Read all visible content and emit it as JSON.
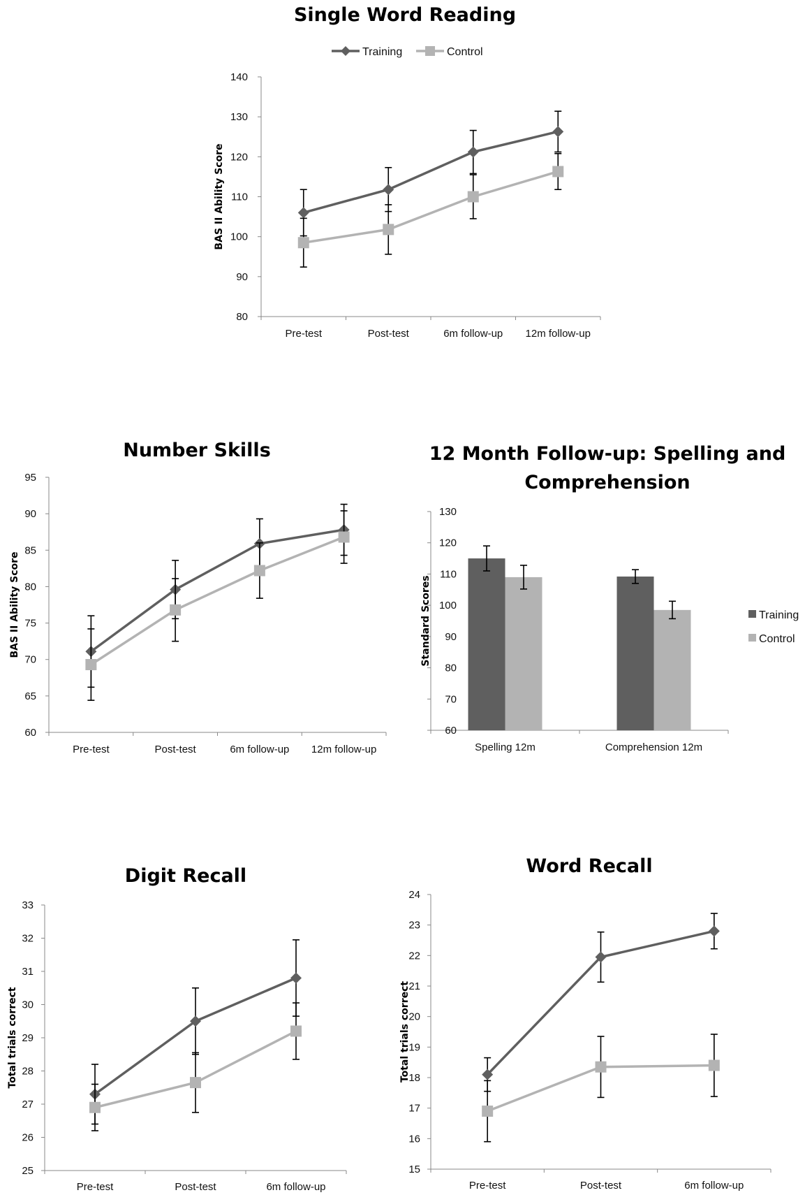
{
  "colors": {
    "training": "#5f5f5f",
    "control": "#b3b3b3"
  },
  "chart_data": [
    {
      "type": "line",
      "title": "Single Word Reading",
      "ylabel": "BAS II Ability Score",
      "ylim": [
        80,
        140
      ],
      "yticks": [
        80,
        90,
        100,
        110,
        120,
        130,
        140
      ],
      "categories": [
        "Pre-test",
        "Post-test",
        "6m follow-up",
        "12m follow-up"
      ],
      "legend": "top",
      "series": [
        {
          "name": "Training",
          "marker": "diamond",
          "values": [
            106,
            111.8,
            121.2,
            126.3
          ],
          "error": [
            5.8,
            5.5,
            5.4,
            5.1
          ]
        },
        {
          "name": "Control",
          "marker": "square",
          "values": [
            98.5,
            101.8,
            110,
            116.3
          ],
          "error": [
            6.1,
            6.2,
            5.5,
            4.5
          ]
        }
      ]
    },
    {
      "type": "line",
      "title": "Number Skills",
      "ylabel": "BAS II Ability Score",
      "ylim": [
        60,
        95
      ],
      "yticks": [
        60,
        65,
        70,
        75,
        80,
        85,
        90,
        95
      ],
      "categories": [
        "Pre-test",
        "Post-test",
        "6m follow-up",
        "12m follow-up"
      ],
      "series": [
        {
          "name": "Training",
          "marker": "diamond",
          "values": [
            71.1,
            79.6,
            85.9,
            87.8
          ],
          "error": [
            4.9,
            4.0,
            3.4,
            3.5
          ]
        },
        {
          "name": "Control",
          "marker": "square",
          "values": [
            69.3,
            76.8,
            82.2,
            86.8
          ],
          "error": [
            4.9,
            4.3,
            3.8,
            3.6
          ]
        }
      ]
    },
    {
      "type": "bar",
      "title": "12 Month Follow-up: Spelling and Comprehension",
      "title_lines": [
        "12 Month Follow-up: Spelling and",
        "Comprehension"
      ],
      "ylabel": "Standard Scores",
      "ylim": [
        60,
        130
      ],
      "yticks": [
        60,
        70,
        80,
        90,
        100,
        110,
        120,
        130
      ],
      "categories": [
        "Spelling 12m",
        "Comprehension 12m"
      ],
      "legend": "right",
      "series": [
        {
          "name": "Training",
          "values": [
            115,
            109.2
          ],
          "error": [
            4.0,
            2.2
          ]
        },
        {
          "name": "Control",
          "values": [
            109,
            98.5
          ],
          "error": [
            3.8,
            2.8
          ]
        }
      ]
    },
    {
      "type": "line",
      "title": "Digit Recall",
      "ylabel": "Total trials correct",
      "ylim": [
        25,
        33
      ],
      "yticks": [
        25,
        26,
        27,
        28,
        29,
        30,
        31,
        32,
        33
      ],
      "categories": [
        "Pre-test",
        "Post-test",
        "6m follow-up"
      ],
      "series": [
        {
          "name": "Training",
          "marker": "diamond",
          "values": [
            27.3,
            29.5,
            30.8
          ],
          "error": [
            0.9,
            1.0,
            1.15
          ]
        },
        {
          "name": "Control",
          "marker": "square",
          "values": [
            26.9,
            27.65,
            29.2
          ],
          "error": [
            0.7,
            0.9,
            0.85
          ]
        }
      ]
    },
    {
      "type": "line",
      "title": "Word Recall",
      "ylabel": "Total trials correct",
      "ylim": [
        15,
        24
      ],
      "yticks": [
        15,
        16,
        17,
        18,
        19,
        20,
        21,
        22,
        23,
        24
      ],
      "categories": [
        "Pre-test",
        "Post-test",
        "6m follow-up"
      ],
      "series": [
        {
          "name": "Training",
          "marker": "diamond",
          "values": [
            18.1,
            21.95,
            22.8
          ],
          "error": [
            0.55,
            0.82,
            0.58
          ]
        },
        {
          "name": "Control",
          "marker": "square",
          "values": [
            16.9,
            18.35,
            18.4
          ],
          "error": [
            1.0,
            1.0,
            1.02
          ]
        }
      ]
    }
  ]
}
